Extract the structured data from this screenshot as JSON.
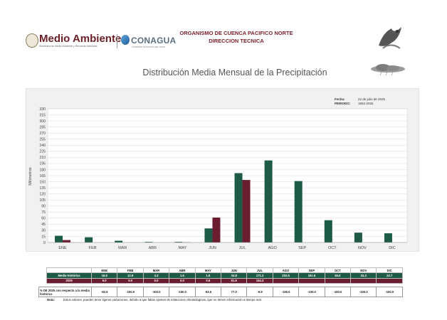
{
  "header": {
    "gov_title": "Medio Ambiente",
    "gov_subtitle": "Secretaría de Medio Ambiente y Recursos Naturales",
    "conagua": "CONAGUA",
    "conagua_subtitle": "COMISIÓN NACIONAL DEL AGUA",
    "org_line1": "ORGANISMO DE CUENCA PACIFICO NORTE",
    "org_line2": "DIRECCION TECNICA"
  },
  "title": "Distribución Media Mensual de la Precipitación",
  "meta": {
    "fecha_label": "Fecha:",
    "fecha_value": "22 de julio de 2025",
    "periodo_label": "PERIODO:",
    "periodo_value": "1962-2025"
  },
  "colors": {
    "hist": "#1e5b46",
    "cur": "#6b1e2f",
    "maroon": "#7a1f2a"
  },
  "chart_data": {
    "type": "bar",
    "title": "Distribución Media Mensual de la Precipitación",
    "ylabel": "Milímetros",
    "xlabel": "",
    "ylim": [
      0,
      330
    ],
    "ytick_step": 15,
    "grid": true,
    "categories": [
      "ENE",
      "FEB",
      "MAR",
      "ABR",
      "MAY",
      "JUN",
      "JUL",
      "AGO",
      "SEP",
      "OCT",
      "NOV",
      "DIC"
    ],
    "series": [
      {
        "name": "Media Histórica",
        "values": [
          16.6,
          12.9,
          4.3,
          1.5,
          1.6,
          34.8,
          171.2,
          202.5,
          151.6,
          55.0,
          24.3,
          22.7
        ]
      },
      {
        "name": "2025",
        "values": [
          6.0,
          0.0,
          0.0,
          0.0,
          0.6,
          61.6,
          154.3,
          null,
          null,
          null,
          null,
          null
        ]
      }
    ]
  },
  "table": {
    "row_hist_label": "Media Histórica",
    "row_cur_label": "2025",
    "months": [
      "ENE",
      "FEB",
      "MAR",
      "ABR",
      "MAY",
      "JUN",
      "JUL",
      "AGO",
      "SEP",
      "OCT",
      "NOV",
      "DIC"
    ],
    "hist": [
      "16.6",
      "12.9",
      "4.3",
      "1.5",
      "1.6",
      "34.8",
      "171.2",
      "202.5",
      "151.6",
      "55.0",
      "24.3",
      "22.7"
    ],
    "cur": [
      "6.0",
      "0.0",
      "0.0",
      "0.0",
      "0.6",
      "61.6",
      "154.3",
      "",
      "",
      "",
      "",
      ""
    ]
  },
  "pct": {
    "label": "% DE 2025 con respecto a la media histórica",
    "values": [
      "-63.5",
      "-100.0",
      "-100.0",
      "-100.0",
      "-63.6",
      "77.0",
      "-9.9",
      "-100.0",
      "-100.0",
      "-100.0",
      "-100.0",
      "-100.0"
    ]
  },
  "note": {
    "label": "Nota:",
    "text": "Estos valores, pueden tener ligeras variaciones, debido a que faltan ajustes de estaciones climatológicas, que no tienen información a tiempo real."
  }
}
